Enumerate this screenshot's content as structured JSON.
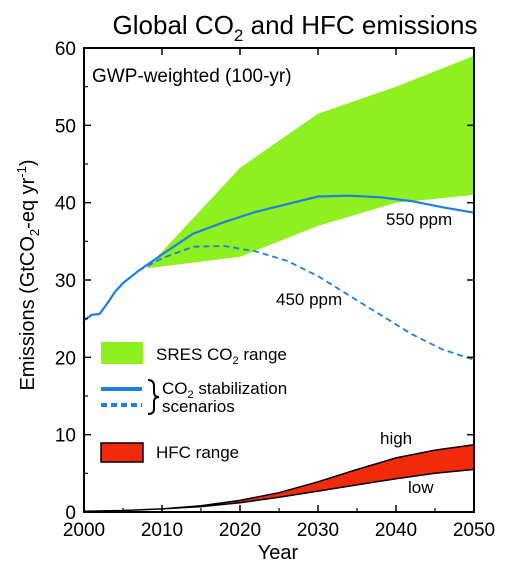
{
  "chart_data": {
    "type": "area",
    "title": "Global CO",
    "title_sub": "2",
    "title_rest": " and HFC emissions",
    "annotation": "GWP-weighted (100-yr)",
    "xlabel": "Year",
    "ylabel_pre": "Emissions (GtCO",
    "ylabel_sub": "2",
    "ylabel_mid": "-eq yr",
    "ylabel_sup": "-1",
    "ylabel_post": ")",
    "xlim": [
      2000,
      2050
    ],
    "ylim": [
      0,
      60
    ],
    "xticks": [
      "2000",
      "2010",
      "2020",
      "2030",
      "2040",
      "2050"
    ],
    "yticks": [
      "0",
      "10",
      "20",
      "30",
      "40",
      "50",
      "60"
    ],
    "colors": {
      "sres": "#8ef01e",
      "stabilization": "#1e7ee6",
      "hfc": "#f02a0a"
    },
    "series": [
      {
        "name": "SRES CO2 range",
        "kind": "band",
        "x": [
          2008,
          2020,
          2030,
          2040,
          2050
        ],
        "upper": [
          31.5,
          44.5,
          51.5,
          55,
          59
        ],
        "lower": [
          31.5,
          33,
          37,
          40,
          41
        ]
      },
      {
        "name": "550 ppm",
        "kind": "line",
        "style": "solid",
        "x": [
          2000,
          2001,
          2002,
          2003,
          2004,
          2005,
          2007,
          2010,
          2014,
          2018,
          2022,
          2026,
          2030,
          2034,
          2038,
          2042,
          2046,
          2050
        ],
        "y": [
          24.8,
          25.5,
          25.6,
          27,
          28.5,
          29.6,
          31.2,
          33.3,
          36,
          37.5,
          38.8,
          39.8,
          40.8,
          40.9,
          40.7,
          40.2,
          39.4,
          38.7
        ]
      },
      {
        "name": "450 ppm",
        "kind": "line",
        "style": "dashed",
        "x": [
          2007,
          2010,
          2014,
          2018,
          2022,
          2026,
          2030,
          2034,
          2038,
          2042,
          2046,
          2050
        ],
        "y": [
          31.2,
          32.8,
          34.3,
          34.4,
          33.7,
          32.5,
          30.5,
          28,
          25.5,
          23,
          21,
          19.7
        ]
      },
      {
        "name": "HFC range",
        "kind": "band",
        "x": [
          2000,
          2005,
          2010,
          2015,
          2020,
          2025,
          2030,
          2035,
          2040,
          2045,
          2050
        ],
        "upper": [
          0.1,
          0.2,
          0.4,
          0.8,
          1.5,
          2.5,
          3.9,
          5.5,
          7,
          8,
          8.7
        ],
        "lower": [
          0.1,
          0.2,
          0.4,
          0.7,
          1.2,
          1.9,
          2.7,
          3.5,
          4.3,
          5,
          5.5
        ]
      }
    ],
    "labels": {
      "ppm550": "550 ppm",
      "ppm450": "450 ppm",
      "high": "high",
      "low": "low"
    },
    "legend": {
      "sres_pre": "SRES CO",
      "sres_sub": "2",
      "sres_post": " range",
      "stab_pre": "CO",
      "stab_sub": "2",
      "stab_post": " stabilization",
      "stab_line2": "scenarios",
      "hfc": "HFC range"
    }
  }
}
